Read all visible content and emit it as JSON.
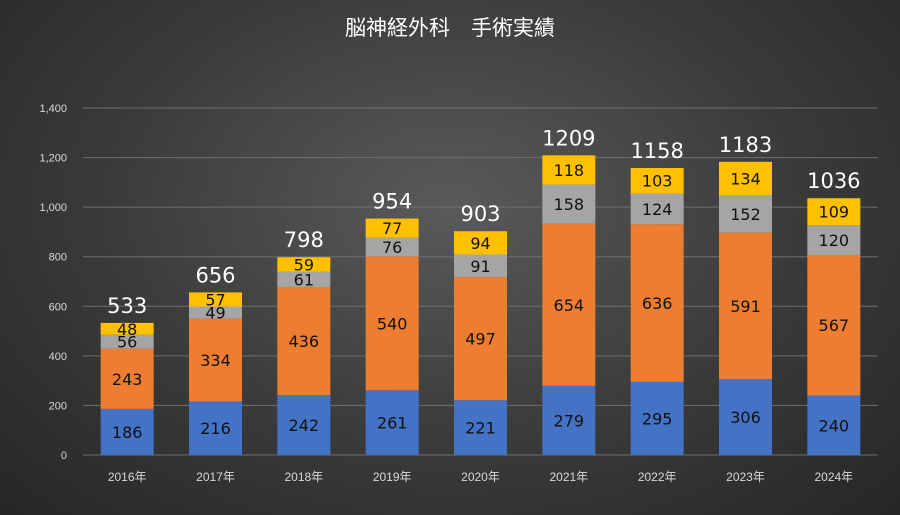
{
  "chart_data": {
    "type": "bar",
    "stacked": true,
    "title": "脳神経外科　手術実績",
    "categories": [
      "2016年",
      "2017年",
      "2018年",
      "2019年",
      "2020年",
      "2021年",
      "2022年",
      "2023年",
      "2024年"
    ],
    "series": [
      {
        "values": [
          186,
          216,
          242,
          261,
          221,
          279,
          295,
          306,
          240
        ],
        "color": "#4472c4"
      },
      {
        "values": [
          243,
          334,
          436,
          540,
          497,
          654,
          636,
          591,
          567
        ],
        "color": "#ed7d31"
      },
      {
        "values": [
          56,
          49,
          61,
          76,
          91,
          158,
          124,
          152,
          120
        ],
        "color": "#a5a5a5"
      },
      {
        "values": [
          48,
          57,
          59,
          77,
          94,
          118,
          103,
          134,
          109
        ],
        "color": "#ffc000"
      }
    ],
    "totals": [
      533,
      656,
      798,
      954,
      903,
      1209,
      1158,
      1183,
      1036
    ],
    "yticks": [
      "0",
      "200",
      "400",
      "600",
      "800",
      "1,000",
      "1,200",
      "1,400"
    ],
    "ylim": [
      0,
      1400
    ],
    "grid": true,
    "legend": "none"
  }
}
